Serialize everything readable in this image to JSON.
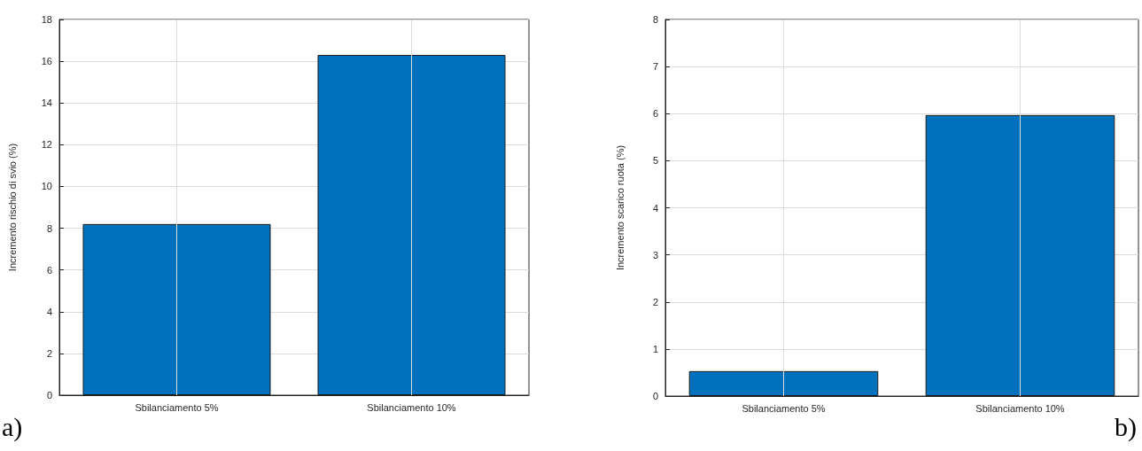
{
  "chart_data": [
    {
      "type": "bar",
      "categories": [
        "Sbilanciamento 5%",
        "Sbilanciamento 10%"
      ],
      "values": [
        8.2,
        16.3
      ],
      "color": "#0072bd",
      "ylabel": "Incremento rischio di svio (%)",
      "ylim": [
        0,
        18
      ],
      "yticks": [
        0,
        2,
        4,
        6,
        8,
        10,
        12,
        14,
        16,
        18
      ],
      "grid": true,
      "annotations": [
        "a)"
      ]
    },
    {
      "type": "bar",
      "categories": [
        "Sbilanciamento 5%",
        "Sbilanciamento 10%"
      ],
      "values": [
        0.53,
        5.97
      ],
      "color": "#0072bd",
      "ylabel": "Incremento scarico ruota (%)",
      "ylim": [
        0,
        8
      ],
      "yticks": [
        0,
        1,
        2,
        3,
        4,
        5,
        6,
        7,
        8
      ],
      "grid": true,
      "annotations": [
        "b)"
      ]
    }
  ]
}
